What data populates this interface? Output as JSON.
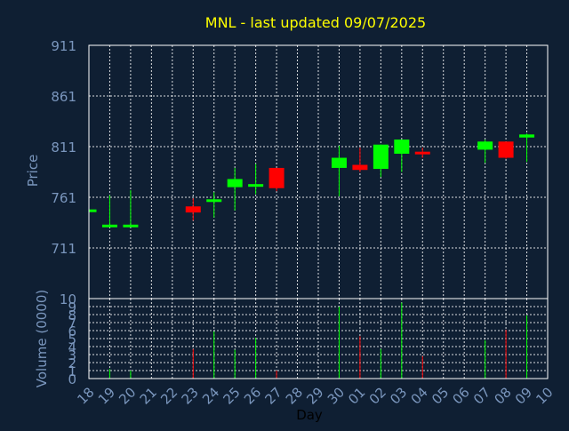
{
  "chart_data": {
    "type": "candlestick",
    "title": "MNL - last updated 09/07/2025",
    "xlabel": "Day",
    "colors": {
      "background": "#0f1f33",
      "title": "#ffff00",
      "axis_text": "#7a96bd",
      "xlabel": "#000000",
      "grid": "#ffffff",
      "up": "#00ff00",
      "down": "#ff0000"
    },
    "grid": true,
    "days": [
      "18",
      "19",
      "20",
      "21",
      "22",
      "23",
      "24",
      "25",
      "26",
      "27",
      "28",
      "29",
      "30",
      "01",
      "02",
      "03",
      "04",
      "05",
      "06",
      "07",
      "08",
      "09",
      "10"
    ],
    "price": {
      "ylabel": "Price",
      "ylim": [
        661,
        911
      ],
      "ticks": [
        "711",
        "761",
        "811",
        "861",
        "911"
      ],
      "candles": [
        {
          "day": "18",
          "open": 749,
          "high": 749,
          "low": 749,
          "close": 749
        },
        {
          "day": "19",
          "open": 734,
          "high": 763,
          "low": 734,
          "close": 734
        },
        {
          "day": "20",
          "open": 734,
          "high": 768,
          "low": 734,
          "close": 734
        },
        {
          "day": "23",
          "open": 752,
          "high": 760,
          "low": 738,
          "close": 746
        },
        {
          "day": "24",
          "open": 758,
          "high": 766,
          "low": 741,
          "close": 759
        },
        {
          "day": "25",
          "open": 771,
          "high": 790,
          "low": 748,
          "close": 779
        },
        {
          "day": "26",
          "open": 772,
          "high": 794,
          "low": 764,
          "close": 774
        },
        {
          "day": "27",
          "open": 790,
          "high": 790,
          "low": 767,
          "close": 770
        },
        {
          "day": "30",
          "open": 790,
          "high": 812,
          "low": 762,
          "close": 800
        },
        {
          "day": "01",
          "open": 793,
          "high": 810,
          "low": 786,
          "close": 788
        },
        {
          "day": "02",
          "open": 789,
          "high": 813,
          "low": 781,
          "close": 813
        },
        {
          "day": "03",
          "open": 804,
          "high": 818,
          "low": 786,
          "close": 818
        },
        {
          "day": "04",
          "open": 806,
          "high": 810,
          "low": 800,
          "close": 805
        },
        {
          "day": "07",
          "open": 808,
          "high": 818,
          "low": 795,
          "close": 816
        },
        {
          "day": "08",
          "open": 816,
          "high": 816,
          "low": 799,
          "close": 800
        },
        {
          "day": "09",
          "open": 820,
          "high": 824,
          "low": 796,
          "close": 823
        }
      ]
    },
    "volume": {
      "ylabel": "Volume (0000)",
      "ylim": [
        0,
        10
      ],
      "ticks": [
        "0",
        "1",
        "2",
        "3",
        "4",
        "5",
        "6",
        "7",
        "8",
        "9",
        "10"
      ],
      "bars": [
        {
          "day": "19",
          "value": 1.2,
          "dir": "up"
        },
        {
          "day": "20",
          "value": 1.0,
          "dir": "up"
        },
        {
          "day": "23",
          "value": 3.7,
          "dir": "down"
        },
        {
          "day": "24",
          "value": 5.9,
          "dir": "up"
        },
        {
          "day": "25",
          "value": 3.6,
          "dir": "up"
        },
        {
          "day": "26",
          "value": 5.1,
          "dir": "up"
        },
        {
          "day": "27",
          "value": 1.0,
          "dir": "down"
        },
        {
          "day": "30",
          "value": 9.0,
          "dir": "up"
        },
        {
          "day": "01",
          "value": 5.3,
          "dir": "down"
        },
        {
          "day": "02",
          "value": 3.7,
          "dir": "up"
        },
        {
          "day": "03",
          "value": 9.5,
          "dir": "up"
        },
        {
          "day": "04",
          "value": 2.8,
          "dir": "down"
        },
        {
          "day": "07",
          "value": 4.8,
          "dir": "up"
        },
        {
          "day": "08",
          "value": 6.1,
          "dir": "down"
        },
        {
          "day": "09",
          "value": 7.9,
          "dir": "up"
        }
      ]
    }
  }
}
